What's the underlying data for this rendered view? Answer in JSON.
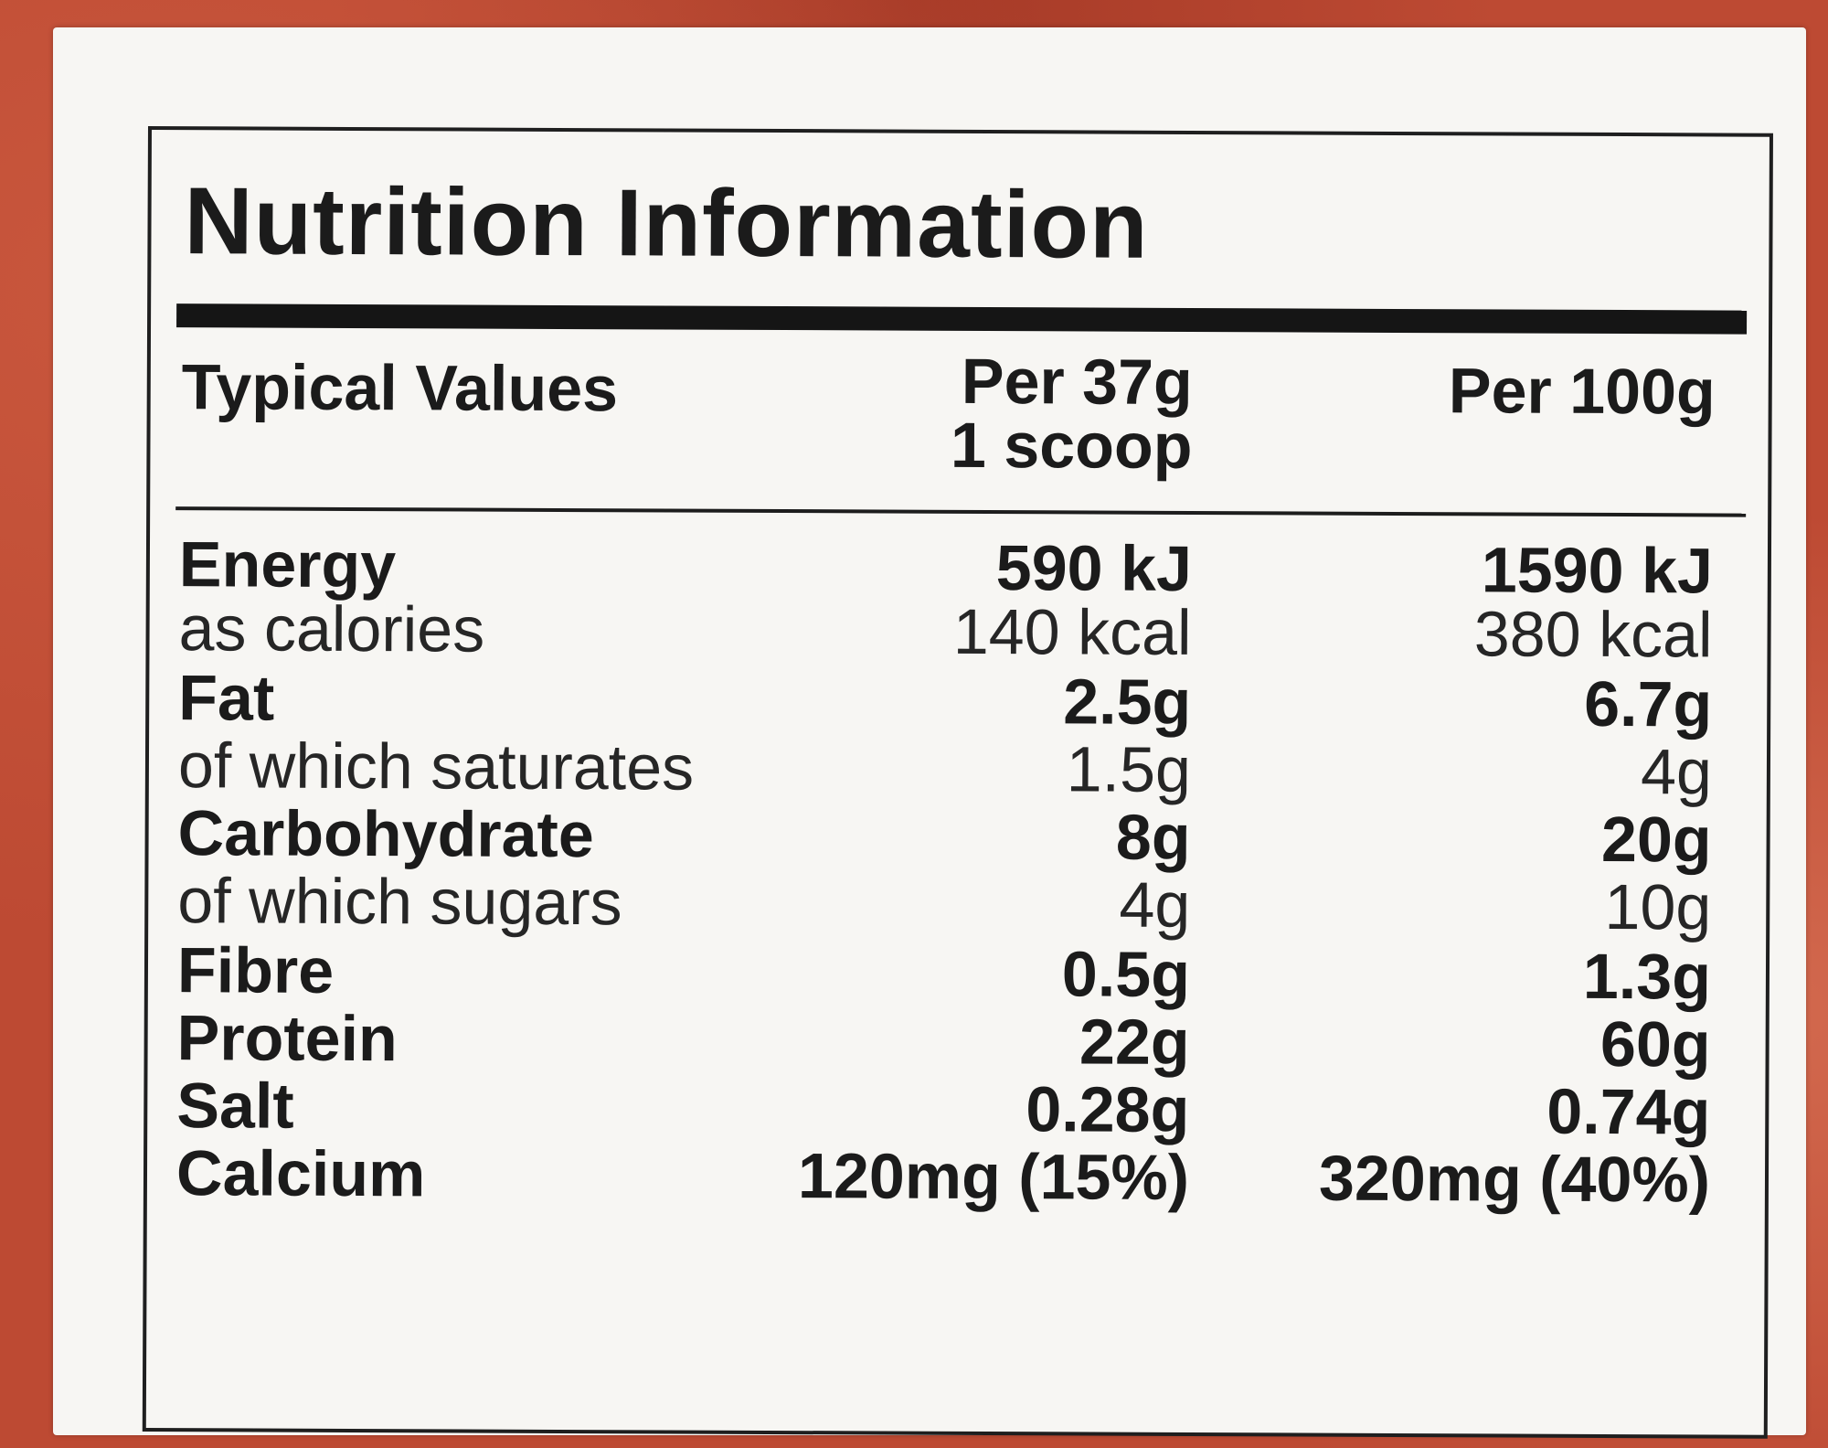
{
  "label": {
    "title": "Nutrition Information",
    "header": {
      "typical_values": "Typical Values",
      "col1_line1": "Per 37g",
      "col1_line2": "1 scoop",
      "col2": "Per 100g"
    },
    "rows": [
      {
        "name": "Energy",
        "per_serving": "590 kJ",
        "per_100g": "1590 kJ",
        "style": "bold"
      },
      {
        "name": "as calories",
        "per_serving": "140 kcal",
        "per_100g": "380 kcal",
        "style": "sub"
      },
      {
        "name": "Fat",
        "per_serving": "2.5g",
        "per_100g": "6.7g",
        "style": "bold"
      },
      {
        "name": "of which saturates",
        "per_serving": "1.5g",
        "per_100g": "4g",
        "style": "sub"
      },
      {
        "name": "Carbohydrate",
        "per_serving": "8g",
        "per_100g": "20g",
        "style": "bold"
      },
      {
        "name": "of which sugars",
        "per_serving": "4g",
        "per_100g": "10g",
        "style": "sub"
      },
      {
        "name": "Fibre",
        "per_serving": "0.5g",
        "per_100g": "1.3g",
        "style": "bold"
      },
      {
        "name": "Protein",
        "per_serving": "22g",
        "per_100g": "60g",
        "style": "bold"
      },
      {
        "name": "Salt",
        "per_serving": "0.28g",
        "per_100g": "0.74g",
        "style": "bold"
      },
      {
        "name": "Calcium",
        "per_serving": "120mg (15%)",
        "per_100g": "320mg (40%)",
        "style": "bold"
      }
    ]
  },
  "colors": {
    "packaging": "#bd4a33",
    "card": "#f7f6f3",
    "ink": "#1b1b1b"
  }
}
